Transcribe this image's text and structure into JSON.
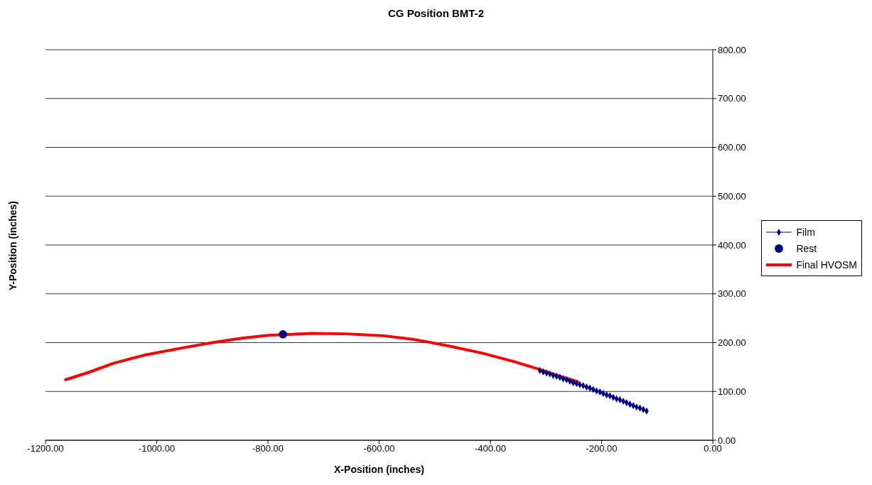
{
  "chart_data": {
    "type": "line",
    "title": "CG Position BMT-2",
    "xlabel": "X-Position (inches)",
    "ylabel": "Y-Position (inches)",
    "xlim": [
      -1200,
      0
    ],
    "xticks": [
      {
        "value": -1200,
        "label": "-1200.00"
      },
      {
        "value": -1000,
        "label": "-1000.00"
      },
      {
        "value": -800,
        "label": "-800.00"
      },
      {
        "value": -600,
        "label": "-600.00"
      },
      {
        "value": -400,
        "label": "-400.00"
      },
      {
        "value": -200,
        "label": "-200.00"
      },
      {
        "value": 0,
        "label": "0.00"
      }
    ],
    "ylim": [
      0,
      800
    ],
    "yticks": [
      {
        "value": 0,
        "label": "0.00"
      },
      {
        "value": 100,
        "label": "100.00"
      },
      {
        "value": 200,
        "label": "200.00"
      },
      {
        "value": 300,
        "label": "300.00"
      },
      {
        "value": 400,
        "label": "400.00"
      },
      {
        "value": 500,
        "label": "500.00"
      },
      {
        "value": 600,
        "label": "600.00"
      },
      {
        "value": 700,
        "label": "700.00"
      },
      {
        "value": 800,
        "label": "800.00"
      }
    ],
    "grid": "y",
    "legend": "right",
    "series": [
      {
        "name": "Film",
        "marker": "diamond",
        "color": "#000080",
        "x": [
          -311,
          -305,
          -299,
          -293,
          -287,
          -281,
          -275,
          -269,
          -263,
          -257,
          -251,
          -245,
          -239,
          -233,
          -227,
          -221,
          -215,
          -209,
          -203,
          -197,
          -191,
          -185,
          -179,
          -173,
          -167,
          -161,
          -155,
          -149,
          -143,
          -137,
          -131,
          -125,
          -119
        ],
        "values": [
          143,
          140,
          138,
          136,
          133,
          131,
          129,
          126,
          124,
          121,
          118,
          116,
          114,
          112,
          109,
          107,
          104,
          101,
          99,
          96,
          93,
          91,
          88,
          85,
          83,
          80,
          77,
          74,
          71,
          68,
          66,
          63,
          60
        ]
      },
      {
        "name": "Rest",
        "type": "scatter",
        "marker": "circle",
        "color": "#000080",
        "x": [
          -773
        ],
        "values": [
          217
        ]
      },
      {
        "name": "Final HVOSM",
        "marker": "none",
        "color": "#ff0000",
        "x": [
          -1164,
          -1120,
          -1077,
          -1020,
          -950,
          -900,
          -847,
          -800,
          -720,
          -660,
          -592,
          -540,
          -515,
          -470,
          -413,
          -360,
          -314,
          -280,
          -243
        ],
        "values": [
          124,
          140,
          158,
          175,
          190,
          200,
          209,
          215,
          219,
          218,
          214,
          207,
          202,
          192,
          178,
          162,
          146,
          133,
          120
        ]
      }
    ]
  }
}
